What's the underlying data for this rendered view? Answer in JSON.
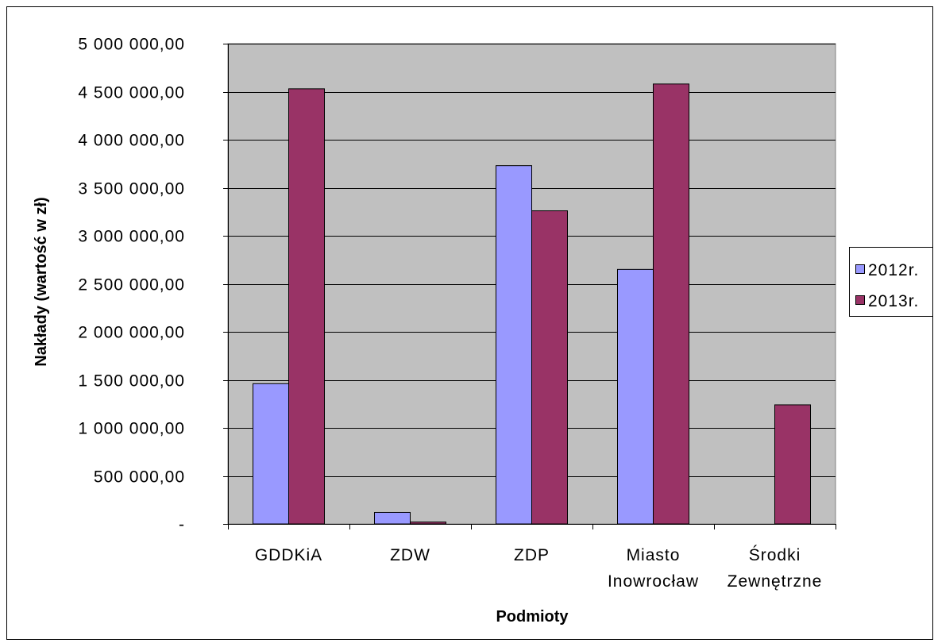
{
  "chart_data": {
    "type": "bar",
    "xlabel": "Podmioty",
    "ylabel": "Nakłady (wartość w zł)",
    "categories": [
      "GDDKiA",
      "ZDW",
      "ZDP",
      "Miasto Inowrocław",
      "Środki Zewnętrzne"
    ],
    "series": [
      {
        "name": "2012r.",
        "color": "#9999FF",
        "values": [
          1460000,
          120000,
          3730000,
          2650000,
          0
        ]
      },
      {
        "name": "2013r.",
        "color": "#993366",
        "values": [
          4530000,
          20000,
          3260000,
          4580000,
          1240000
        ]
      }
    ],
    "ylim": [
      0,
      5000000
    ],
    "yticks": [
      0,
      500000,
      1000000,
      1500000,
      2000000,
      2500000,
      3000000,
      3500000,
      4000000,
      4500000,
      5000000
    ],
    "ytick_labels": [
      "-",
      "500 000,00",
      "1 000 000,00",
      "1 500 000,00",
      "2 000 000,00",
      "2 500 000,00",
      "3 000 000,00",
      "3 500 000,00",
      "4 000 000,00",
      "4 500 000,00",
      "5 000 000,00"
    ],
    "grid": true,
    "legend": "right",
    "plot_background": "#C0C0C0"
  }
}
